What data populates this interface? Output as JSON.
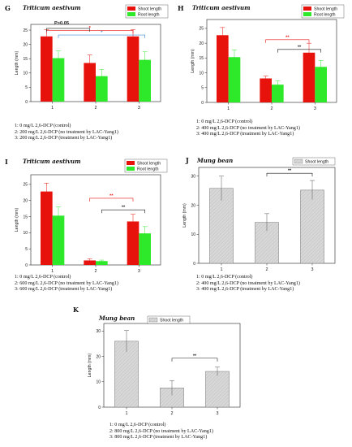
{
  "chart_data": [
    {
      "panel": "G",
      "type": "bar",
      "title": "Triticum aestivum",
      "ylabel": "Length (mm)",
      "categories": [
        "1",
        "2",
        "3"
      ],
      "yticks": [
        "0",
        "5",
        "10",
        "15",
        "20",
        "25"
      ],
      "ylim": [
        0,
        27
      ],
      "series": [
        {
          "name": "Shoot length",
          "color": "#e8120c",
          "values": [
            22.8,
            13.5,
            22.8
          ],
          "errors": [
            2.3,
            2.8,
            2.4
          ]
        },
        {
          "name": "Root length",
          "color": "#2ee82a",
          "values": [
            15.2,
            8.9,
            14.6
          ],
          "errors": [
            2.5,
            2.3,
            2.8
          ]
        }
      ],
      "annotations": [
        {
          "text": "P>0.05",
          "color": "#1a1a1a"
        },
        {
          "text": "*",
          "color": "#e8120c"
        },
        {
          "text": "*",
          "color": "#3a8ad8"
        }
      ],
      "notes": [
        "1:  0 mg/L 2,6-DCP (control)",
        "2:  200 mg/L 2,6-DCP (no treatment by LAC-Yang1)",
        "3:  200 mg/L 2,6-DCP (treatment by LAC-Yang1)"
      ]
    },
    {
      "panel": "H",
      "type": "bar",
      "title": "Triticum aestivum",
      "ylabel": "Length (mm)",
      "categories": [
        "1",
        "2",
        "3"
      ],
      "yticks": [
        "0",
        "5",
        "10",
        "15",
        "20",
        "25"
      ],
      "ylim": [
        0,
        28
      ],
      "series": [
        {
          "name": "Shoot length",
          "color": "#e8120c",
          "values": [
            22.7,
            8.1,
            16.8
          ],
          "errors": [
            2.6,
            0.8,
            3.2
          ]
        },
        {
          "name": "Root length",
          "color": "#2ee82a",
          "values": [
            15.3,
            6.0,
            12.0
          ],
          "errors": [
            2.4,
            1.3,
            2.2
          ]
        }
      ],
      "annotations": [
        {
          "text": "**",
          "color": "#e8120c"
        },
        {
          "text": "**",
          "color": "#1a1a1a"
        }
      ],
      "notes": [
        "1:  0 mg/L 2,6-DCP (control)",
        "2:  400 mg/L 2,6-DCP (no treatment by LAC-Yang1)",
        "3:  400 mg/L 2,6-DCP (treatment by LAC-Yang1)"
      ]
    },
    {
      "panel": "I",
      "type": "bar",
      "title": "Triticum aestivum",
      "ylabel": "Length (mm)",
      "categories": [
        "1",
        "2",
        "3"
      ],
      "yticks": [
        "0",
        "5",
        "10",
        "15",
        "20",
        "25"
      ],
      "ylim": [
        0,
        28
      ],
      "series": [
        {
          "name": "Shoot length",
          "color": "#e8120c",
          "values": [
            22.8,
            1.4,
            13.5
          ],
          "errors": [
            2.6,
            0.5,
            2.2
          ]
        },
        {
          "name": "Root length",
          "color": "#2ee82a",
          "values": [
            15.3,
            1.2,
            9.8
          ],
          "errors": [
            2.7,
            0.3,
            2.1
          ]
        }
      ],
      "annotations": [
        {
          "text": "**",
          "color": "#e8120c"
        },
        {
          "text": "**",
          "color": "#1a1a1a"
        }
      ],
      "notes": [
        "1:  0 mg/L 2,6-DCP (control)",
        "2:  600 mg/L 2,6-DCP (no treatment by LAC-Yang1)",
        "3:  600 mg/L 2,6-DCP (treatment by LAC-Yang1)"
      ]
    },
    {
      "panel": "J",
      "type": "bar",
      "title": "Mung bean",
      "ylabel": "Length (mm)",
      "categories": [
        "1",
        "2",
        "3"
      ],
      "yticks": [
        "0",
        "10",
        "20",
        "30"
      ],
      "ylim": [
        0,
        33
      ],
      "series": [
        {
          "name": "Shoot length",
          "color": "#d4d4d4",
          "values": [
            25.8,
            14.1,
            25.2
          ],
          "errors": [
            4.2,
            3.0,
            3.3
          ]
        }
      ],
      "annotations": [
        {
          "text": "**",
          "color": "#1a1a1a"
        }
      ],
      "notes": [
        "1:  0 mg/L 2,6-DCP (control)",
        "2:  400 mg/L 2,6-DCP (no treatment by LAC-Yang1)",
        "3:  400 mg/L 2,6-DCP (treatment by LAC-Yang1)"
      ]
    },
    {
      "panel": "K",
      "type": "bar",
      "title": "Mung bean",
      "ylabel": "Length (mm)",
      "categories": [
        "1",
        "2",
        "3"
      ],
      "yticks": [
        "0",
        "10",
        "20",
        "30"
      ],
      "ylim": [
        0,
        33
      ],
      "series": [
        {
          "name": "Shoot length",
          "color": "#d4d4d4",
          "values": [
            26.0,
            7.6,
            14.1
          ],
          "errors": [
            4.2,
            2.9,
            1.7
          ]
        }
      ],
      "annotations": [
        {
          "text": "**",
          "color": "#1a1a1a"
        }
      ],
      "notes": [
        "1:  0 mg/L 2,6-DCP (control)",
        "2:  800 mg/L 2,6-DCP (no treatment by LAC-Yang1)",
        "3:  800 mg/L 2,6-DCP (treatment by LAC-Yang1)"
      ]
    }
  ]
}
